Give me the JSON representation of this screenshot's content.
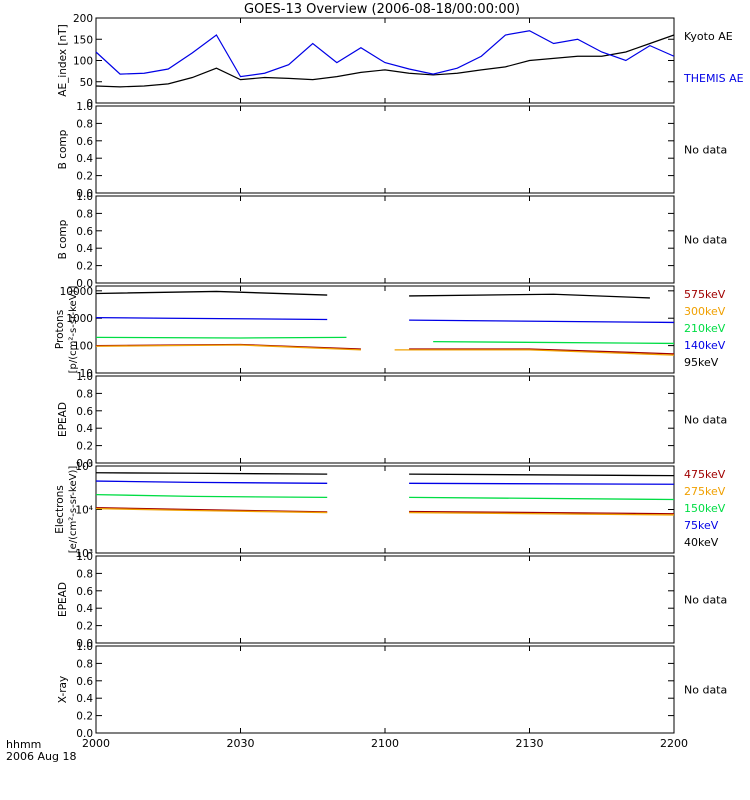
{
  "title": "GOES-13 Overview (2006-08-18/00:00:00)",
  "footer": {
    "time_label": "hhmm",
    "date_label": "2006 Aug 18"
  },
  "x_ticks": [
    "2000",
    "2030",
    "2100",
    "2130",
    "2200"
  ],
  "colors": {
    "black": "#000000",
    "blue": "#0000e6",
    "green": "#00dd44",
    "orange": "#f0a000",
    "darkred": "#a00000"
  },
  "chart_data": [
    {
      "id": "ae",
      "type": "line",
      "ylabel": "AE_index [nT]",
      "y_ticks": [
        "0",
        "50",
        "100",
        "150",
        "200"
      ],
      "ylim": [
        0,
        200
      ],
      "x_minutes": [
        0,
        5,
        10,
        15,
        20,
        25,
        30,
        35,
        40,
        45,
        50,
        55,
        60,
        65,
        70,
        75,
        80,
        85,
        90,
        95,
        100,
        105,
        110,
        115,
        120
      ],
      "series": [
        {
          "name": "Kyoto AE",
          "color": "#000000",
          "values": [
            40,
            38,
            40,
            45,
            60,
            82,
            55,
            60,
            58,
            55,
            62,
            72,
            78,
            70,
            66,
            70,
            78,
            85,
            100,
            105,
            110,
            110,
            120,
            140,
            160
          ]
        },
        {
          "name": "THEMIS AE",
          "color": "#0000e6",
          "values": [
            120,
            68,
            70,
            80,
            118,
            160,
            62,
            70,
            90,
            140,
            95,
            130,
            95,
            80,
            68,
            82,
            110,
            160,
            170,
            140,
            150,
            120,
            100,
            135,
            110
          ]
        }
      ]
    },
    {
      "id": "bcomp1",
      "ylabel": "B comp",
      "y_ticks": [
        "0.0",
        "0.2",
        "0.4",
        "0.6",
        "0.8",
        "1.0"
      ],
      "status": "No data"
    },
    {
      "id": "bcomp2",
      "ylabel": "B comp",
      "y_ticks": [
        "0.0",
        "0.2",
        "0.4",
        "0.6",
        "0.8",
        "1.0"
      ],
      "status": "No data"
    },
    {
      "id": "protons",
      "type": "line",
      "scale": "log",
      "ylabel": "Protons",
      "yunits": "[p/(cm²-s-sr-keV)]",
      "y_ticks": [
        "10",
        "100",
        "1000",
        "10000"
      ],
      "ylim": [
        10,
        15000
      ],
      "series": [
        {
          "name": "575keV",
          "color": "#a00000",
          "segments": [
            [
              [
                0,
                100
              ],
              [
                30,
                110
              ],
              [
                55,
                75
              ]
            ],
            [
              [
                65,
                75
              ],
              [
                90,
                75
              ],
              [
                120,
                50
              ]
            ]
          ]
        },
        {
          "name": "300keV",
          "color": "#f0a000",
          "segments": [
            [
              [
                0,
                95
              ],
              [
                30,
                105
              ],
              [
                55,
                70
              ]
            ],
            [
              [
                62,
                70
              ],
              [
                90,
                70
              ],
              [
                120,
                45
              ]
            ]
          ]
        },
        {
          "name": "210keV",
          "color": "#00dd44",
          "segments": [
            [
              [
                0,
                200
              ],
              [
                30,
                190
              ],
              [
                52,
                200
              ]
            ],
            [
              [
                70,
                140
              ],
              [
                120,
                120
              ]
            ]
          ]
        },
        {
          "name": "140keV",
          "color": "#0000e6",
          "segments": [
            [
              [
                0,
                1050
              ],
              [
                15,
                1000
              ],
              [
                48,
                900
              ]
            ],
            [
              [
                65,
                850
              ],
              [
                120,
                700
              ]
            ]
          ]
        },
        {
          "name": "95keV",
          "color": "#000000",
          "segments": [
            [
              [
                0,
                8000
              ],
              [
                25,
                9500
              ],
              [
                48,
                7000
              ]
            ],
            [
              [
                65,
                6500
              ],
              [
                95,
                7500
              ],
              [
                115,
                5500
              ]
            ]
          ]
        }
      ]
    },
    {
      "id": "epead1",
      "ylabel": "EPEAD",
      "y_ticks": [
        "0.0",
        "0.2",
        "0.4",
        "0.6",
        "0.8",
        "1.0"
      ],
      "status": "No data"
    },
    {
      "id": "electrons",
      "type": "line",
      "scale": "log",
      "ylabel": "Electrons",
      "yunits": "[e/(cm²-s-sr-keV)]",
      "y_ticks": [
        "10³",
        "10⁴",
        "10⁵"
      ],
      "ylim": [
        1000,
        100000
      ],
      "series": [
        {
          "name": "475keV",
          "color": "#a00000",
          "segments": [
            [
              [
                0,
                11000
              ],
              [
                20,
                10000
              ],
              [
                48,
                8800
              ]
            ],
            [
              [
                65,
                9000
              ],
              [
                120,
                8000
              ]
            ]
          ]
        },
        {
          "name": "275keV",
          "color": "#f0a000",
          "segments": [
            [
              [
                0,
                10500
              ],
              [
                20,
                9500
              ],
              [
                48,
                8500
              ]
            ],
            [
              [
                65,
                8500
              ],
              [
                120,
                7500
              ]
            ]
          ]
        },
        {
          "name": "150keV",
          "color": "#00dd44",
          "segments": [
            [
              [
                0,
                22000
              ],
              [
                20,
                20000
              ],
              [
                48,
                19000
              ]
            ],
            [
              [
                65,
                19000
              ],
              [
                120,
                17000
              ]
            ]
          ]
        },
        {
          "name": "75keV",
          "color": "#0000e6",
          "segments": [
            [
              [
                0,
                45000
              ],
              [
                20,
                42000
              ],
              [
                48,
                40000
              ]
            ],
            [
              [
                65,
                40000
              ],
              [
                120,
                38000
              ]
            ]
          ]
        },
        {
          "name": "40keV",
          "color": "#000000",
          "segments": [
            [
              [
                0,
                70000
              ],
              [
                20,
                68000
              ],
              [
                48,
                65000
              ]
            ],
            [
              [
                65,
                65000
              ],
              [
                120,
                60000
              ]
            ]
          ]
        }
      ]
    },
    {
      "id": "epead2",
      "ylabel": "EPEAD",
      "y_ticks": [
        "0.0",
        "0.2",
        "0.4",
        "0.6",
        "0.8",
        "1.0"
      ],
      "status": "No data"
    },
    {
      "id": "xray",
      "ylabel": "X-ray",
      "y_ticks": [
        "0.0",
        "0.2",
        "0.4",
        "0.6",
        "0.8",
        "1.0"
      ],
      "status": "No data"
    }
  ]
}
